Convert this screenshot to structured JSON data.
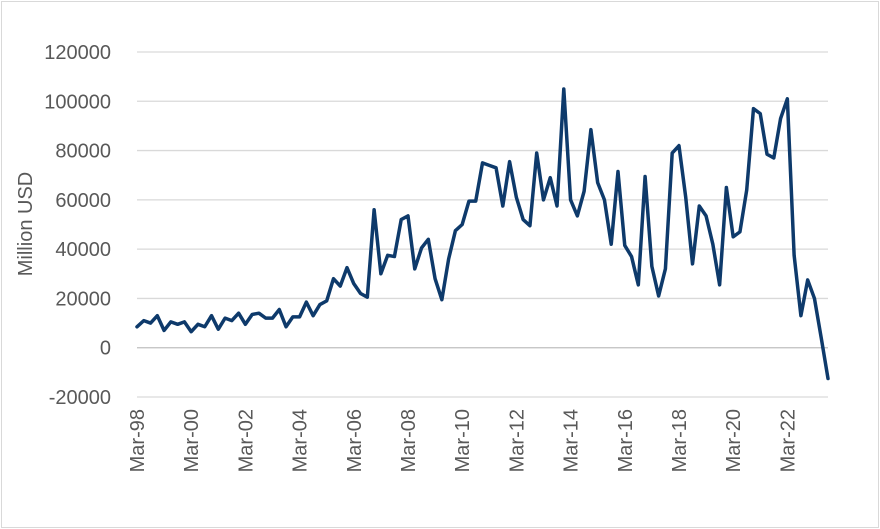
{
  "chart_data": {
    "type": "line",
    "title": "",
    "xlabel": "",
    "ylabel": "Million USD",
    "ylim": [
      -20000,
      120000
    ],
    "y_ticks": [
      -20000,
      0,
      20000,
      40000,
      60000,
      80000,
      100000,
      120000
    ],
    "y_tick_labels": [
      "-20000",
      "0",
      "20000",
      "40000",
      "60000",
      "80000",
      "100000",
      "120000"
    ],
    "x_tick_labels": [
      "Mar-98",
      "Mar-00",
      "Mar-02",
      "Mar-04",
      "Mar-06",
      "Mar-08",
      "Mar-10",
      "Mar-12",
      "Mar-14",
      "Mar-16",
      "Mar-18",
      "Mar-20",
      "Mar-22"
    ],
    "grid": true,
    "legend": "none",
    "colors": {
      "line": "#0e3a6b",
      "grid": "#d9d9d9",
      "text": "#595959"
    },
    "series": [
      {
        "x": [
          "Mar-98",
          "Jun-98",
          "Sep-98",
          "Dec-98",
          "Mar-99",
          "Jun-99",
          "Sep-99",
          "Dec-99",
          "Mar-00",
          "Jun-00",
          "Sep-00",
          "Dec-00",
          "Mar-01",
          "Jun-01",
          "Sep-01",
          "Dec-01",
          "Mar-02",
          "Jun-02",
          "Sep-02",
          "Dec-02",
          "Mar-03",
          "Jun-03",
          "Sep-03",
          "Dec-03",
          "Mar-04",
          "Jun-04",
          "Sep-04",
          "Dec-04",
          "Mar-05",
          "Jun-05",
          "Sep-05",
          "Dec-05",
          "Mar-06",
          "Jun-06",
          "Sep-06",
          "Dec-06",
          "Mar-07",
          "Jun-07",
          "Sep-07",
          "Dec-07",
          "Mar-08",
          "Jun-08",
          "Sep-08",
          "Dec-08",
          "Mar-09",
          "Jun-09",
          "Sep-09",
          "Dec-09",
          "Mar-10",
          "Jun-10",
          "Sep-10",
          "Dec-10",
          "Mar-11",
          "Jun-11",
          "Sep-11",
          "Dec-11",
          "Mar-12",
          "Jun-12",
          "Sep-12",
          "Dec-12",
          "Mar-13",
          "Jun-13",
          "Sep-13",
          "Dec-13",
          "Mar-14",
          "Jun-14",
          "Sep-14",
          "Dec-14",
          "Mar-15",
          "Jun-15",
          "Sep-15",
          "Dec-15",
          "Mar-16",
          "Jun-16",
          "Sep-16",
          "Dec-16",
          "Mar-17",
          "Jun-17",
          "Sep-17",
          "Dec-17",
          "Mar-18",
          "Jun-18",
          "Sep-18",
          "Dec-18",
          "Mar-19",
          "Jun-19",
          "Sep-19",
          "Dec-19",
          "Mar-20",
          "Jun-20",
          "Sep-20",
          "Dec-20",
          "Mar-21",
          "Jun-21",
          "Sep-21",
          "Dec-21",
          "Mar-22",
          "Jun-22",
          "Sep-22",
          "Dec-22",
          "Mar-23",
          "Jun-23",
          "Sep-23"
        ],
        "values": [
          8500,
          11000,
          10000,
          13000,
          7000,
          10500,
          9500,
          10500,
          6500,
          9500,
          8500,
          13000,
          7500,
          12000,
          11000,
          14000,
          9500,
          13500,
          14000,
          12000,
          12000,
          15500,
          8500,
          12500,
          12500,
          18500,
          13000,
          17500,
          19000,
          28000,
          25000,
          32500,
          26000,
          22000,
          20500,
          56000,
          30000,
          37500,
          37000,
          52000,
          53500,
          32000,
          40500,
          44000,
          28000,
          19500,
          36000,
          47500,
          50000,
          59500,
          59500,
          75000,
          74000,
          73000,
          57500,
          75500,
          61000,
          52000,
          49500,
          79000,
          60000,
          69000,
          57500,
          105000,
          60000,
          53500,
          63500,
          88500,
          67000,
          60000,
          42000,
          71500,
          41500,
          37000,
          25500,
          69500,
          33000,
          21000,
          32000,
          79000,
          82000,
          61000,
          34000,
          57500,
          53500,
          42000,
          25500,
          65000,
          45000,
          47000,
          64000,
          97000,
          95000,
          78500,
          77000,
          93000,
          101000,
          37500,
          13000,
          27500,
          20000,
          4000,
          -12500
        ]
      }
    ]
  }
}
